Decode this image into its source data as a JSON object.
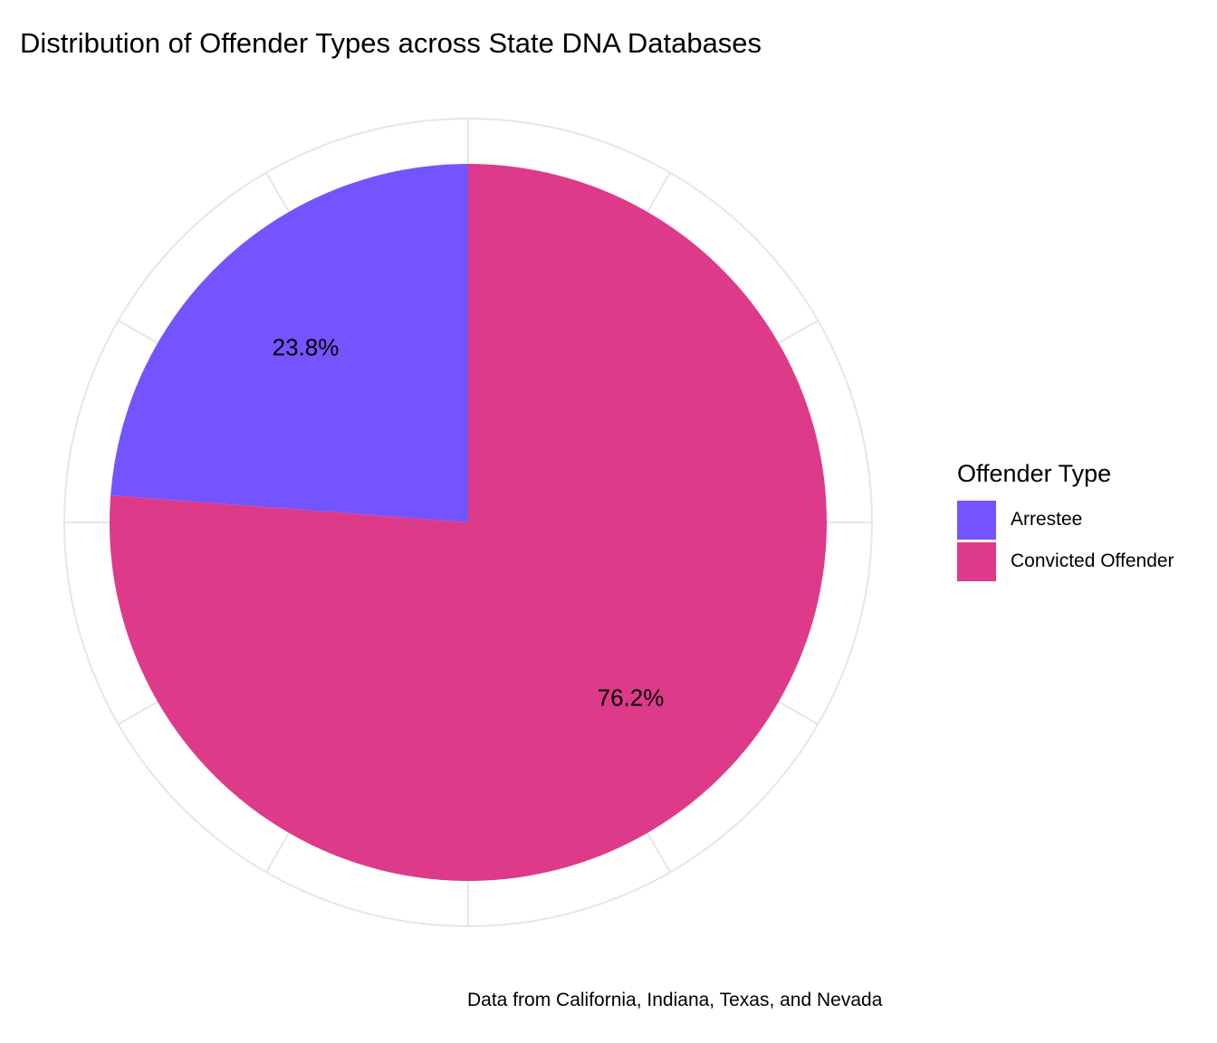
{
  "chart_data": {
    "type": "pie",
    "title": "Distribution of Offender Types across State DNA Databases",
    "caption": "Data from California, Indiana, Texas, and Nevada",
    "legend": {
      "title": "Offender Type",
      "position": "right"
    },
    "direction": "counterclockwise",
    "start": "top",
    "grid": true,
    "slices": [
      {
        "name": "Arrestee",
        "value": 23.8,
        "label": "23.8%",
        "color": "#7454ff"
      },
      {
        "name": "Convicted Offender",
        "value": 76.2,
        "label": "76.2%",
        "color": "#dd3a89"
      }
    ]
  }
}
